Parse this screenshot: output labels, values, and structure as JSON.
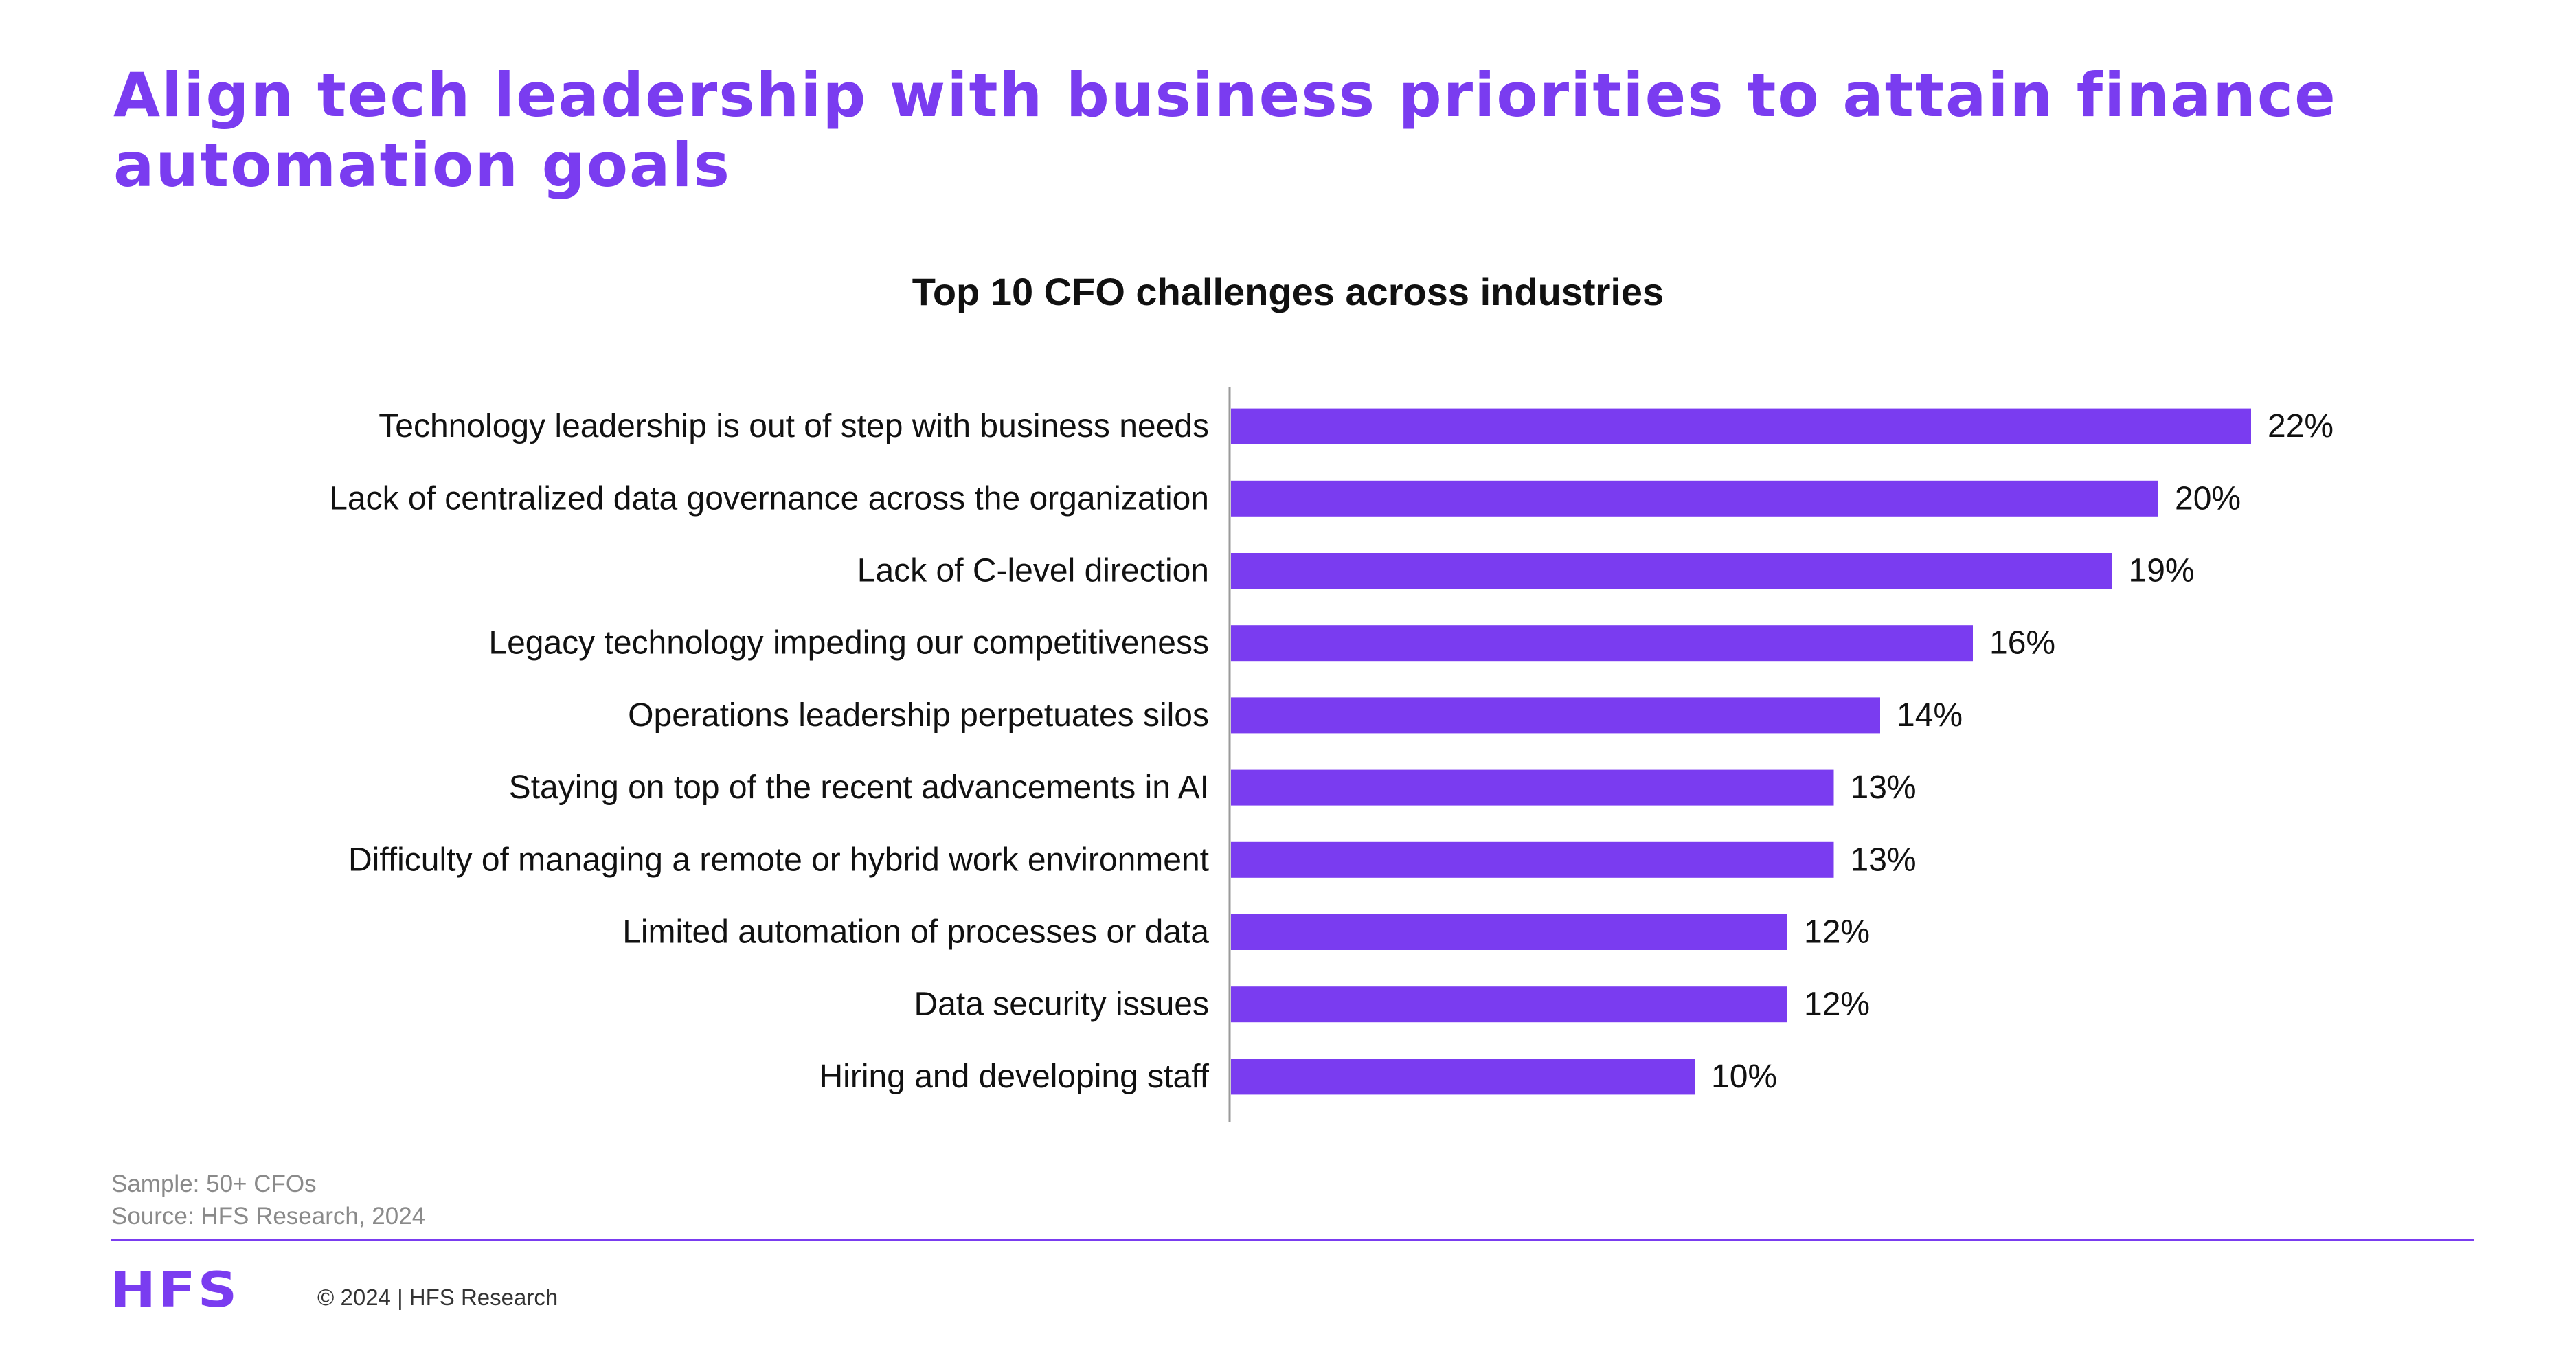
{
  "page": {
    "headline": "Align tech leadership with business priorities to attain finance automation goals",
    "sample_note": "Sample: 50+ CFOs",
    "source_note": "Source: HFS Research, 2024",
    "footer_logo": "HFS",
    "copyright": "© 2024 | HFS Research"
  },
  "colors": {
    "accent": "#7a3cf0",
    "bar": "#7a3cf0",
    "axis": "#9a9a9a"
  },
  "chart_data": {
    "type": "bar",
    "orientation": "horizontal",
    "title": "Top 10 CFO challenges across industries",
    "categories": [
      "Technology leadership is out of step with business needs",
      "Lack of centralized data governance across the organization",
      "Lack of C-level direction",
      "Legacy technology impeding our competitiveness",
      "Operations leadership perpetuates silos",
      "Staying on top of the recent advancements in AI",
      "Difficulty of managing a remote or hybrid work environment",
      "Limited automation of processes or data",
      "Data security issues",
      "Hiring and developing staff"
    ],
    "values": [
      22,
      20,
      19,
      16,
      14,
      13,
      13,
      12,
      12,
      10
    ],
    "value_labels": [
      "22%",
      "20%",
      "19%",
      "16%",
      "14%",
      "13%",
      "13%",
      "12%",
      "12%",
      "10%"
    ],
    "xlim": [
      0,
      22
    ],
    "grid": false,
    "legend": "none"
  }
}
